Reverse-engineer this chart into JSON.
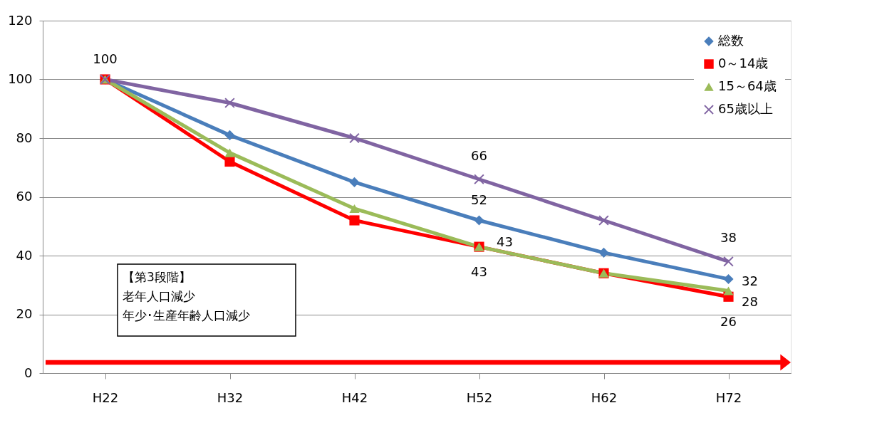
{
  "chart_data": {
    "type": "line",
    "categories": [
      "H22",
      "H32",
      "H42",
      "H52",
      "H62",
      "H72"
    ],
    "ylim": [
      0,
      120
    ],
    "yticks": [
      0,
      20,
      40,
      60,
      80,
      100,
      120
    ],
    "grid": "y",
    "legend": "top right",
    "line_style": "solid",
    "series": [
      {
        "name": "総数",
        "color": "#4a7ebb",
        "marker": "diamond",
        "values": [
          100,
          81,
          65,
          52,
          41,
          32
        ],
        "value_labels": [
          null,
          null,
          null,
          "52",
          null,
          "32"
        ]
      },
      {
        "name": "0～14歳",
        "color": "#ff0000",
        "marker": "square",
        "values": [
          100,
          72,
          52,
          43,
          34,
          26
        ],
        "value_labels": [
          null,
          null,
          null,
          "43",
          null,
          "26"
        ]
      },
      {
        "name": "15～64歳",
        "color": "#9bbb59",
        "marker": "triangle",
        "values": [
          100,
          75,
          56,
          43,
          34,
          28
        ],
        "value_labels": [
          null,
          null,
          null,
          "43",
          null,
          "28"
        ]
      },
      {
        "name": "65歳以上",
        "color": "#8064a2",
        "marker": "cross",
        "values": [
          100,
          92,
          80,
          66,
          52,
          38
        ],
        "value_labels": [
          "100",
          null,
          null,
          "66",
          null,
          "38"
        ]
      }
    ],
    "annotations": [
      "【第3段階】",
      "老年人口減少",
      "年少･生産年齢人口減少"
    ]
  }
}
